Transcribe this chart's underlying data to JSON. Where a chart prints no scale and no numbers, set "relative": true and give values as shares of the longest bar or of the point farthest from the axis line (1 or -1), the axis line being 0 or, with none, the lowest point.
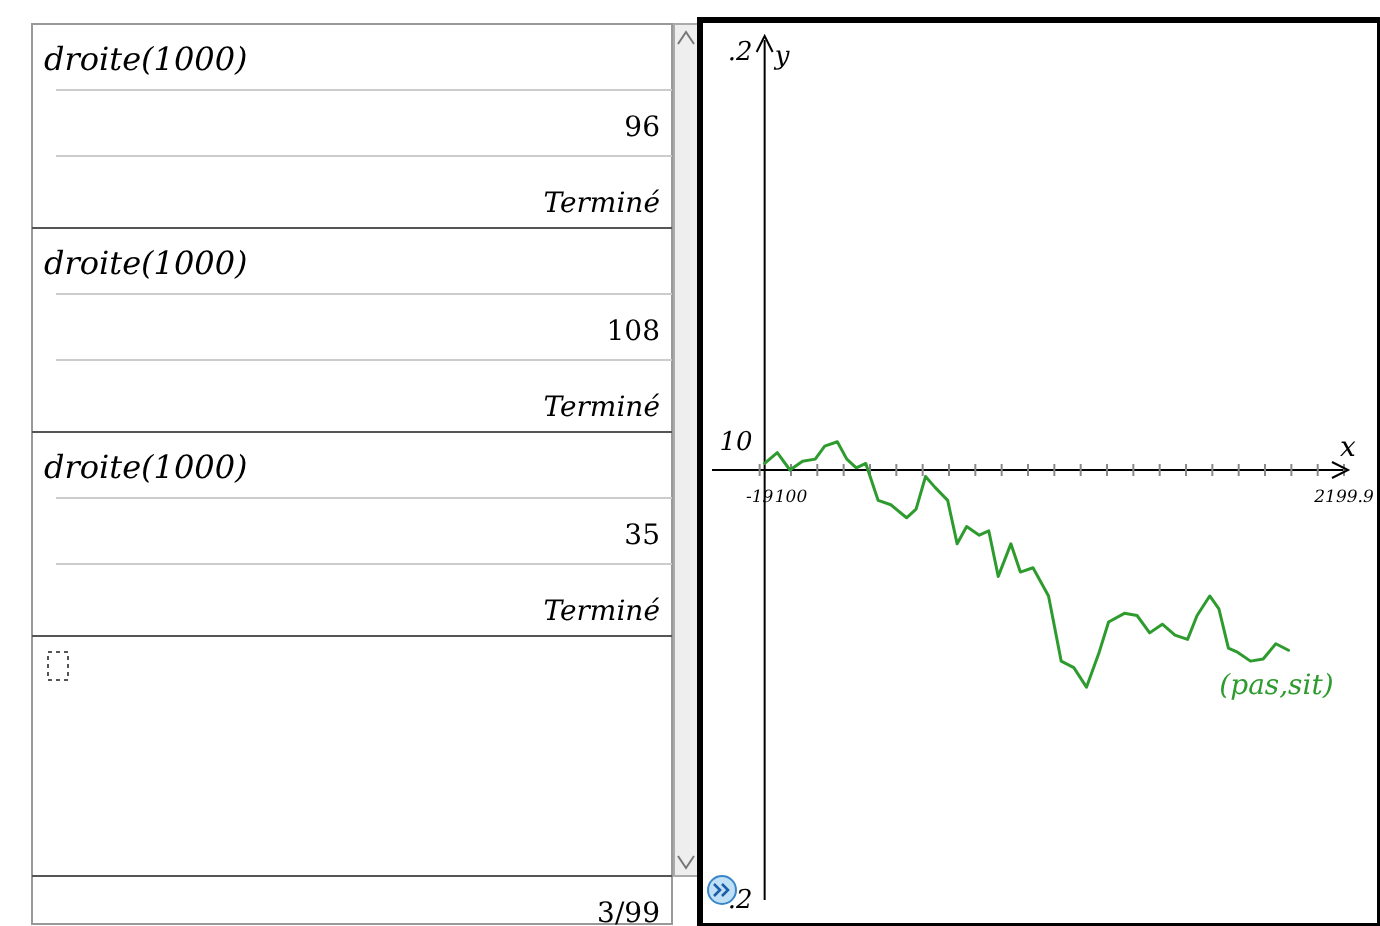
{
  "chart_data": {
    "type": "line",
    "xlabel": "x",
    "xlim": [
      -199.9,
      2199.9
    ],
    "relative": true,
    "xticks": [
      -19,
      {
        "value": 100,
        "label": "100"
      },
      {
        "value": 200,
        "label": null
      },
      {
        "value": 300,
        "label": null
      },
      {
        "value": 400,
        "label": null
      },
      {
        "value": 500,
        "label": null
      },
      {
        "value": 600,
        "label": null
      },
      {
        "value": 700,
        "label": null
      },
      {
        "value": 800,
        "label": null
      },
      {
        "value": 900,
        "label": null
      },
      {
        "value": 1000,
        "label": null
      },
      {
        "value": 1100,
        "label": null
      },
      {
        "value": 1200,
        "label": null
      },
      {
        "value": 1300,
        "label": null
      },
      {
        "value": 1400,
        "label": null
      },
      {
        "value": 1500,
        "label": null
      },
      {
        "value": 1600,
        "label": null
      },
      {
        "value": 1700,
        "label": null
      },
      {
        "value": 1800,
        "label": null
      },
      {
        "value": 1900,
        "label": null
      },
      {
        "value": 2000,
        "label": null
      },
      {
        "value": 2100,
        "label": null
      },
      {
        "value": 2199.9,
        "label": "2199.9"
      }
    ],
    "marker": "none",
    "line_style": "solid",
    "x": [
      0,
      48,
      96,
      144,
      192,
      228,
      276,
      312,
      348,
      384,
      431,
      479,
      539,
      575,
      611,
      647,
      695,
      731,
      767,
      815,
      851,
      887,
      935,
      971,
      1019,
      1078,
      1126,
      1174,
      1222,
      1270,
      1306,
      1366,
      1414,
      1462,
      1510,
      1558,
      1606,
      1642,
      1690,
      1725,
      1761,
      1797,
      1845,
      1893,
      1941,
      1989
    ],
    "series": [
      {
        "name": "(pas,sit)",
        "color": "#2e9b2e",
        "values": [
          0.03,
          0.08,
          0,
          0.04,
          0.05,
          0.11,
          0.13,
          0.05,
          0.01,
          0.03,
          -0.14,
          -0.16,
          -0.22,
          -0.18,
          -0.03,
          -0.08,
          -0.14,
          -0.34,
          -0.26,
          -0.3,
          -0.28,
          -0.49,
          -0.34,
          -0.47,
          -0.45,
          -0.58,
          -0.88,
          -0.91,
          -1,
          -0.84,
          -0.7,
          -0.66,
          -0.67,
          -0.75,
          -0.71,
          -0.76,
          -0.78,
          -0.67,
          -0.58,
          -0.64,
          -0.82,
          -0.84,
          -0.88,
          -0.87,
          -0.8,
          -0.83
        ]
      }
    ],
    "annotations": [
      "droite(1000)",
      "96",
      "Terminé",
      "droite(1000)",
      "108",
      "Terminé",
      "droite(1000)",
      "35",
      "Terminé",
      "3/99",
      "10",
      ".2",
      ".2",
      "y"
    ]
  }
}
